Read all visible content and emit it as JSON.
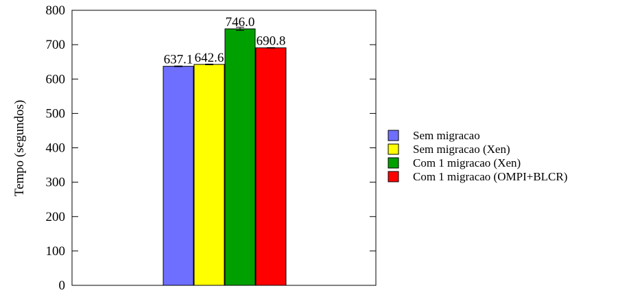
{
  "chart_data": {
    "type": "bar",
    "title": "",
    "xlabel": "",
    "ylabel": "Tempo (segundos)",
    "ylim": [
      0,
      800
    ],
    "yticks": [
      0,
      100,
      200,
      300,
      400,
      500,
      600,
      700,
      800
    ],
    "grid": false,
    "legend_position": "right",
    "series": [
      {
        "name": "Sem migracao",
        "value": 637.1,
        "label": "637.1",
        "error": 1.0,
        "color": "#6f6fff"
      },
      {
        "name": "Sem migracao (Xen)",
        "value": 642.6,
        "label": "642.6",
        "error": 1.0,
        "color": "#ffff00"
      },
      {
        "name": "Com 1 migracao (Xen)",
        "value": 746.0,
        "label": "746.0",
        "error": 4.5,
        "color": "#00a000"
      },
      {
        "name": "Com 1 migracao (OMPI+BLCR)",
        "value": 690.8,
        "label": "690.8",
        "error": 0.8,
        "color": "#ff0000"
      }
    ]
  }
}
